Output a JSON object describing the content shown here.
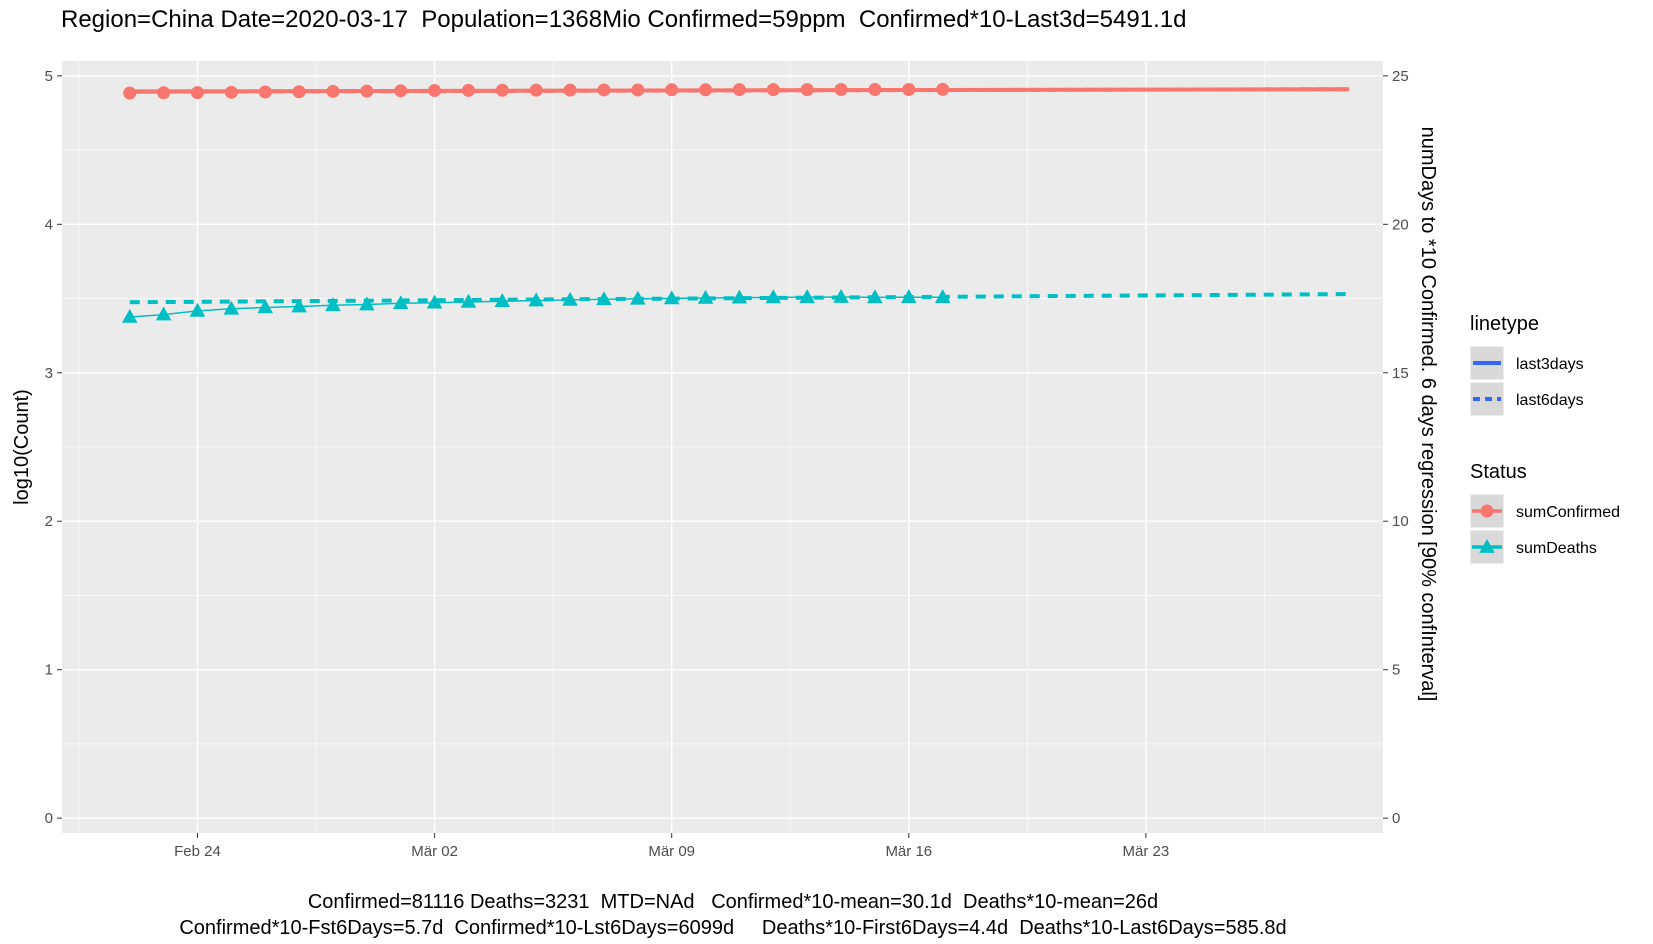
{
  "chart_data": {
    "type": "line",
    "title": "Region=China Date=2020-03-17  Population=1368Mio Confirmed=59ppm  Confirmed*10-Last3d=5491.1d",
    "xlabel": "",
    "ylabel": "log10(Count)",
    "ylabel_right": "numDays to *10 Confirmed. 6 days regression [90% confInterval]",
    "x_tick_labels": [
      "Feb 24",
      "Mär 02",
      "Mär 09",
      "Mär 16",
      "Mär 23"
    ],
    "y_ticks": [
      "0",
      "1",
      "2",
      "3",
      "4",
      "5"
    ],
    "y_right_ticks": [
      "0",
      "5",
      "10",
      "15",
      "20",
      "25"
    ],
    "ylim": [
      -0.1,
      5.1
    ],
    "ylim_right": [
      -0.5,
      25.5
    ],
    "xlim": [
      "2020-02-20",
      "2020-03-30"
    ],
    "grid": true,
    "x_dates": [
      "2020-02-22",
      "2020-02-23",
      "2020-02-24",
      "2020-02-25",
      "2020-02-26",
      "2020-02-27",
      "2020-02-28",
      "2020-02-29",
      "2020-03-01",
      "2020-03-02",
      "2020-03-03",
      "2020-03-04",
      "2020-03-05",
      "2020-03-06",
      "2020-03-07",
      "2020-03-08",
      "2020-03-09",
      "2020-03-10",
      "2020-03-11",
      "2020-03-12",
      "2020-03-13",
      "2020-03-14",
      "2020-03-15",
      "2020-03-16",
      "2020-03-17"
    ],
    "series": [
      {
        "name": "sumConfirmed",
        "color": "#F8766D",
        "marker": "circle",
        "values": [
          4.884,
          4.886,
          4.887,
          4.889,
          4.891,
          4.893,
          4.895,
          4.897,
          4.899,
          4.901,
          4.902,
          4.903,
          4.904,
          4.904,
          4.905,
          4.905,
          4.906,
          4.906,
          4.907,
          4.907,
          4.907,
          4.908,
          4.908,
          4.908,
          4.909
        ]
      },
      {
        "name": "sumDeaths",
        "color": "#00BFC4",
        "marker": "triangle",
        "values": [
          3.376,
          3.392,
          3.417,
          3.431,
          3.44,
          3.446,
          3.455,
          3.46,
          3.468,
          3.472,
          3.477,
          3.482,
          3.487,
          3.491,
          3.495,
          3.498,
          3.501,
          3.504,
          3.506,
          3.508,
          3.509,
          3.51,
          3.508,
          3.509,
          3.509
        ]
      }
    ],
    "regression_lines": [
      {
        "status": "sumConfirmed",
        "linetype": "last3days",
        "color": "#F8766D",
        "x": [
          "2020-02-22",
          "2020-03-29"
        ],
        "y": [
          4.895,
          4.91
        ]
      },
      {
        "status": "sumConfirmed",
        "linetype": "last6days",
        "color": "#F8766D",
        "x": [
          "2020-02-22",
          "2020-03-29"
        ],
        "y": [
          4.893,
          4.91
        ]
      },
      {
        "status": "sumDeaths",
        "linetype": "last6days",
        "color": "#00BFC4",
        "x": [
          "2020-02-22",
          "2020-03-29"
        ],
        "y": [
          3.475,
          3.53
        ]
      }
    ],
    "legends": [
      {
        "title": "linetype",
        "position": "right",
        "items": [
          {
            "label": "last3days",
            "style": "solid",
            "color": "#3366FF"
          },
          {
            "label": "last6days",
            "style": "dashed",
            "color": "#3366FF"
          }
        ]
      },
      {
        "title": "Status",
        "position": "right",
        "items": [
          {
            "label": "sumConfirmed",
            "marker": "circle",
            "color": "#F8766D"
          },
          {
            "label": "sumDeaths",
            "marker": "triangle",
            "color": "#00BFC4"
          }
        ]
      }
    ],
    "footer": [
      "Confirmed=81116 Deaths=3231  MTD=NAd   Confirmed*10-mean=30.1d  Deaths*10-mean=26d",
      "Confirmed*10-Fst6Days=5.7d  Confirmed*10-Lst6Days=6099d     Deaths*10-First6Days=4.4d  Deaths*10-Last6Days=585.8d"
    ]
  }
}
